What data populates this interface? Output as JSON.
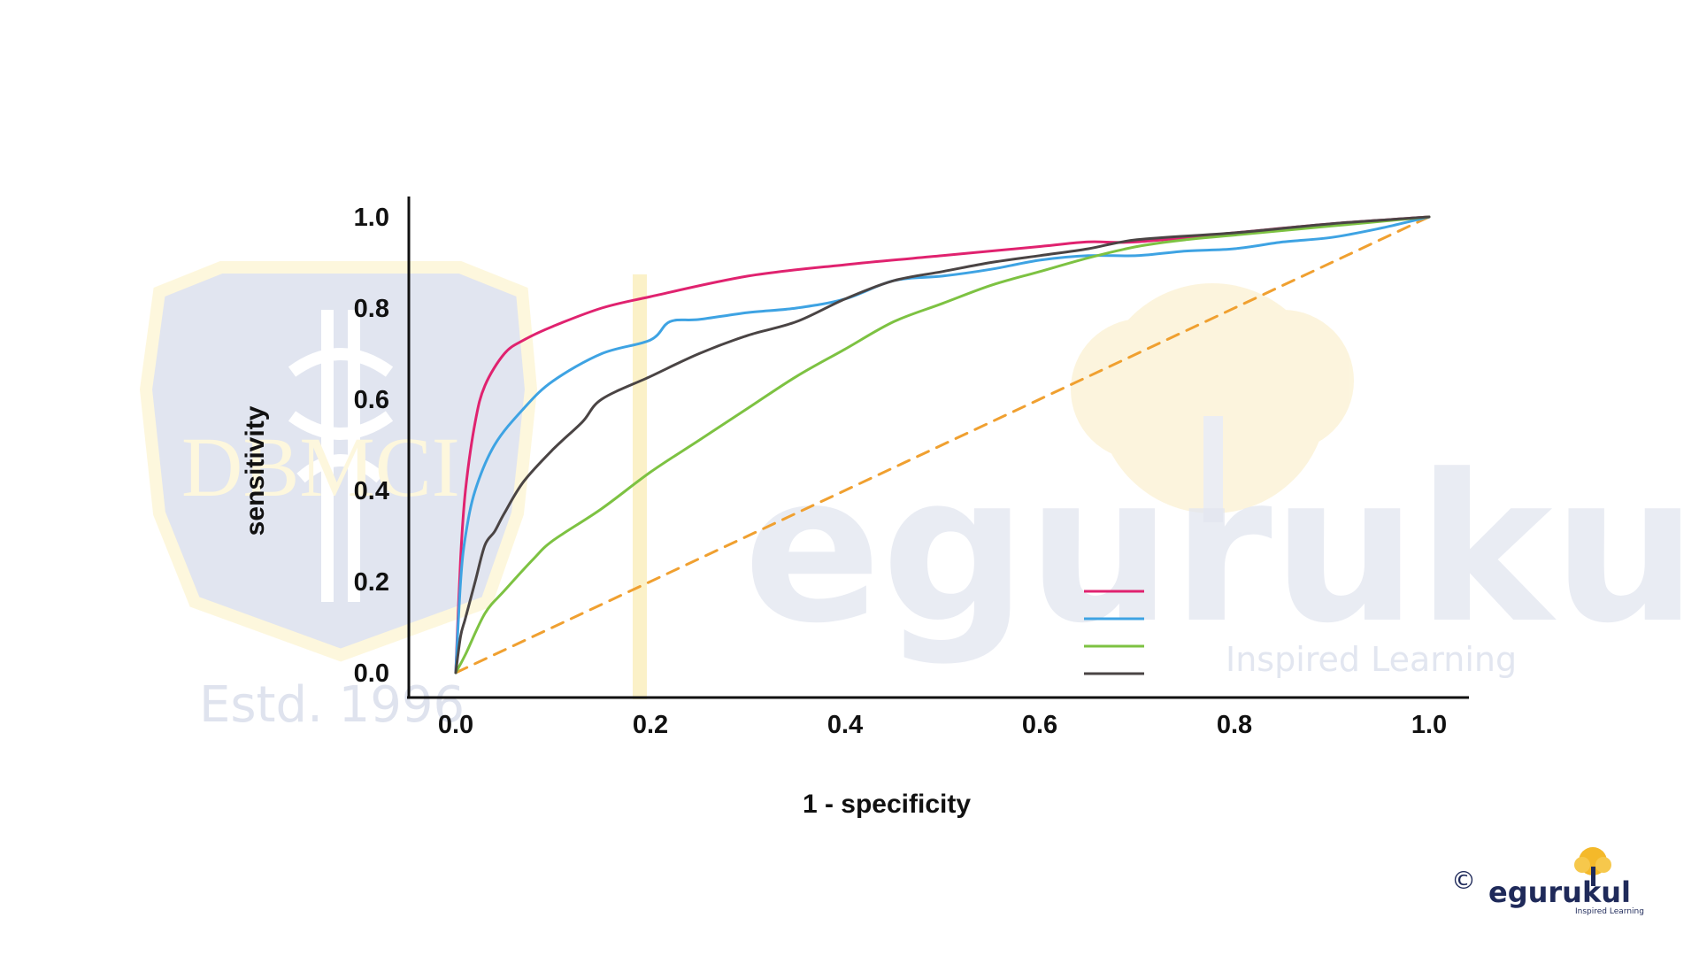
{
  "watermarks": {
    "left_logo_text": "DBMCI",
    "left_logo_caption": "Estd. 1996",
    "right_logo_text": "egurukul",
    "right_logo_tagline": "Inspired Learning"
  },
  "footer": {
    "copyright_symbol": "©",
    "brand_name": "egurukul",
    "brand_tagline": "Inspired Learning"
  },
  "colors": {
    "pink": "#e0226f",
    "blue": "#3ea3e3",
    "green": "#7dc242",
    "dark": "#4a4444",
    "reference": "#f0a030",
    "axis": "#111111"
  },
  "chart_data": {
    "type": "line",
    "title": "",
    "xlabel": "1 - specificity",
    "ylabel": "sensitivity",
    "xlim": [
      0,
      1
    ],
    "ylim": [
      0,
      1
    ],
    "xticks": [
      "0.0",
      "0.2",
      "0.4",
      "0.6",
      "0.8",
      "1.0"
    ],
    "yticks": [
      "0.0",
      "0.2",
      "0.4",
      "0.6",
      "0.8",
      "1.0"
    ],
    "grid": false,
    "legend": {
      "placement": "bottom-right",
      "show_text": false
    },
    "series": [
      {
        "color": "#e0226f",
        "style": "solid",
        "x": [
          0,
          0.005,
          0.01,
          0.02,
          0.03,
          0.05,
          0.07,
          0.1,
          0.15,
          0.2,
          0.3,
          0.4,
          0.5,
          0.6,
          0.65,
          0.7,
          0.8,
          0.9,
          1.0
        ],
        "y": [
          0,
          0.25,
          0.4,
          0.55,
          0.63,
          0.7,
          0.73,
          0.76,
          0.8,
          0.825,
          0.87,
          0.895,
          0.915,
          0.935,
          0.945,
          0.945,
          0.965,
          0.985,
          1.0
        ]
      },
      {
        "color": "#3ea3e3",
        "style": "solid",
        "x": [
          0,
          0.005,
          0.01,
          0.02,
          0.04,
          0.07,
          0.1,
          0.15,
          0.2,
          0.22,
          0.25,
          0.3,
          0.35,
          0.4,
          0.45,
          0.5,
          0.55,
          0.6,
          0.65,
          0.7,
          0.75,
          0.8,
          0.85,
          0.9,
          0.95,
          1.0
        ],
        "y": [
          0,
          0.2,
          0.3,
          0.4,
          0.5,
          0.58,
          0.64,
          0.7,
          0.73,
          0.77,
          0.775,
          0.79,
          0.8,
          0.82,
          0.86,
          0.87,
          0.885,
          0.905,
          0.915,
          0.915,
          0.925,
          0.93,
          0.945,
          0.955,
          0.975,
          1.0
        ]
      },
      {
        "color": "#7dc242",
        "style": "solid",
        "x": [
          0,
          0.01,
          0.03,
          0.05,
          0.08,
          0.1,
          0.15,
          0.2,
          0.25,
          0.3,
          0.35,
          0.4,
          0.45,
          0.5,
          0.55,
          0.6,
          0.65,
          0.7,
          0.75,
          0.8,
          0.9,
          1.0
        ],
        "y": [
          0,
          0.04,
          0.13,
          0.18,
          0.25,
          0.29,
          0.36,
          0.44,
          0.51,
          0.58,
          0.65,
          0.71,
          0.77,
          0.81,
          0.85,
          0.88,
          0.91,
          0.935,
          0.95,
          0.96,
          0.98,
          1.0
        ]
      },
      {
        "color": "#4a4444",
        "style": "solid",
        "x": [
          0,
          0.005,
          0.01,
          0.02,
          0.03,
          0.04,
          0.05,
          0.07,
          0.1,
          0.13,
          0.15,
          0.2,
          0.25,
          0.3,
          0.35,
          0.4,
          0.45,
          0.5,
          0.55,
          0.6,
          0.65,
          0.7,
          0.8,
          0.9,
          1.0
        ],
        "y": [
          0,
          0.08,
          0.12,
          0.2,
          0.28,
          0.31,
          0.35,
          0.42,
          0.49,
          0.55,
          0.6,
          0.65,
          0.7,
          0.74,
          0.77,
          0.82,
          0.86,
          0.88,
          0.9,
          0.915,
          0.93,
          0.95,
          0.965,
          0.985,
          1.0
        ]
      },
      {
        "color": "#f0a030",
        "style": "dashed",
        "x": [
          0,
          1
        ],
        "y": [
          0,
          1
        ]
      }
    ]
  }
}
